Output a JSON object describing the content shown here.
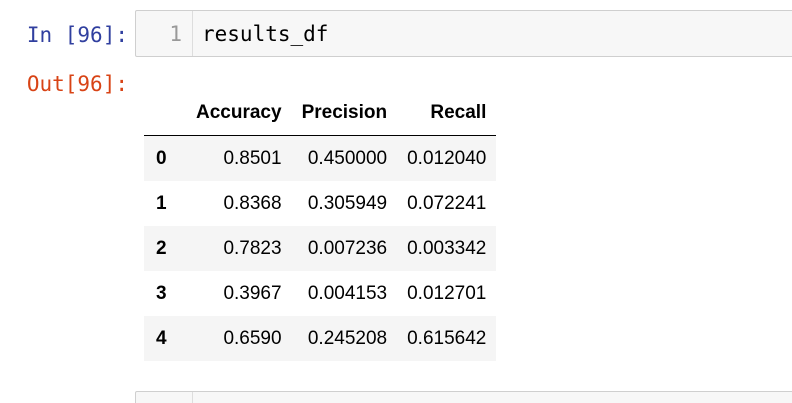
{
  "cell": {
    "in_prompt": "In [96]:",
    "out_prompt": "Out[96]:",
    "line_number": "1",
    "code": "results_df"
  },
  "table": {
    "columns": [
      "Accuracy",
      "Precision",
      "Recall"
    ],
    "rows": [
      {
        "index": "0",
        "values": [
          "0.8501",
          "0.450000",
          "0.012040"
        ]
      },
      {
        "index": "1",
        "values": [
          "0.8368",
          "0.305949",
          "0.072241"
        ]
      },
      {
        "index": "2",
        "values": [
          "0.7823",
          "0.007236",
          "0.003342"
        ]
      },
      {
        "index": "3",
        "values": [
          "0.3967",
          "0.004153",
          "0.012701"
        ]
      },
      {
        "index": "4",
        "values": [
          "0.6590",
          "0.245208",
          "0.615642"
        ]
      }
    ]
  },
  "colors": {
    "in_prompt": "#303f9f",
    "out_prompt": "#d84315",
    "input_background": "#f7f7f7"
  }
}
